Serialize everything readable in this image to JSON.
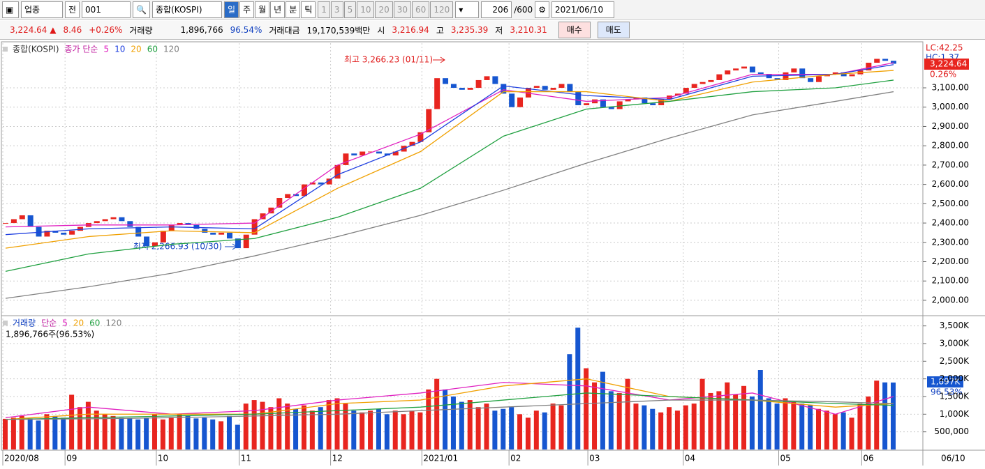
{
  "toolbar": {
    "market": "업종",
    "prev": "전",
    "code": "001",
    "name": "종합(KOSPI)",
    "periods": [
      "일",
      "주",
      "월",
      "년",
      "분",
      "틱"
    ],
    "intervals": [
      "1",
      "3",
      "5",
      "10",
      "20",
      "30",
      "60",
      "120"
    ],
    "count": "206",
    "max": "/600",
    "date": "2021/06/10"
  },
  "info": {
    "price": "3,224.64 ▲",
    "change": "8.46",
    "change_pct": "+0.26%",
    "volume_label": "거래량",
    "volume": "1,896,766",
    "volume_pct": "96.54%",
    "amount_label": "거래대금",
    "amount": "19,170,539백만",
    "open_label": "시",
    "open": "3,216.94",
    "high_label": "고",
    "high": "3,235.39",
    "low_label": "저",
    "low": "3,210.31",
    "buy": "매수",
    "sell": "매도"
  },
  "chart_data": [
    {
      "type": "candlestick",
      "title": "종합(KOSPI)",
      "ma_label": "종가 단순",
      "up_color": "#e8251f",
      "down_color": "#1656d0",
      "close": [
        2400,
        2420,
        2440,
        2380,
        2330,
        2360,
        2350,
        2340,
        2360,
        2380,
        2400,
        2410,
        2420,
        2430,
        2410,
        2380,
        2330,
        2280,
        2300,
        2360,
        2390,
        2400,
        2390,
        2370,
        2350,
        2340,
        2350,
        2320,
        2270,
        2340,
        2420,
        2450,
        2480,
        2530,
        2550,
        2540,
        2600,
        2610,
        2600,
        2630,
        2700,
        2760,
        2750,
        2770,
        2770,
        2760,
        2750,
        2770,
        2800,
        2820,
        2870,
        2990,
        3150,
        3120,
        3100,
        3090,
        3100,
        3140,
        3160,
        3120,
        3070,
        3000,
        3050,
        3100,
        3110,
        3090,
        3100,
        3120,
        3080,
        3010,
        3020,
        3040,
        3000,
        2990,
        3030,
        3040,
        3050,
        3020,
        3010,
        3040,
        3060,
        3070,
        3100,
        3120,
        3130,
        3140,
        3170,
        3190,
        3200,
        3210,
        3180,
        3170,
        3150,
        3140,
        3180,
        3200,
        3150,
        3130,
        3160,
        3170,
        3180,
        3160,
        3170,
        3190,
        3230,
        3250,
        3240,
        3224.64
      ],
      "series": [
        {
          "name": "5",
          "color": "#e020c0",
          "x": [
            0,
            10,
            20,
            30,
            40,
            50,
            60,
            70,
            80,
            90,
            100,
            107
          ],
          "values": [
            2380,
            2390,
            2390,
            2400,
            2700,
            2860,
            3090,
            3030,
            3050,
            3170,
            3170,
            3230
          ]
        },
        {
          "name": "10",
          "color": "#2040e0",
          "x": [
            0,
            10,
            20,
            30,
            40,
            50,
            60,
            70,
            80,
            90,
            100,
            107
          ],
          "values": [
            2340,
            2370,
            2380,
            2370,
            2650,
            2820,
            3110,
            3060,
            3040,
            3160,
            3170,
            3220
          ]
        },
        {
          "name": "20",
          "color": "#f0a000",
          "x": [
            0,
            10,
            20,
            30,
            40,
            50,
            60,
            70,
            80,
            90,
            100,
            107
          ],
          "values": [
            2270,
            2330,
            2360,
            2350,
            2580,
            2770,
            3080,
            3080,
            3030,
            3130,
            3170,
            3190
          ]
        },
        {
          "name": "60",
          "color": "#20a040",
          "x": [
            0,
            10,
            20,
            30,
            40,
            50,
            60,
            70,
            80,
            90,
            100,
            107
          ],
          "values": [
            2150,
            2240,
            2290,
            2320,
            2430,
            2580,
            2850,
            2990,
            3030,
            3080,
            3100,
            3140
          ]
        },
        {
          "name": "120",
          "color": "#808080",
          "x": [
            0,
            10,
            20,
            30,
            40,
            50,
            60,
            70,
            80,
            90,
            100,
            107
          ],
          "values": [
            2010,
            2070,
            2140,
            2230,
            2330,
            2440,
            2570,
            2710,
            2840,
            2960,
            3030,
            3080
          ]
        }
      ],
      "xlim": [
        0,
        107
      ],
      "xticks": [
        {
          "value": 0,
          "label": "2020/08"
        },
        {
          "value": 7.5,
          "label": "09"
        },
        {
          "value": 18.5,
          "label": "10"
        },
        {
          "value": 28.5,
          "label": "11"
        },
        {
          "value": 39.5,
          "label": "12"
        },
        {
          "value": 50.5,
          "label": "2021/01"
        },
        {
          "value": 61,
          "label": "02"
        },
        {
          "value": 70.5,
          "label": "03"
        },
        {
          "value": 82,
          "label": "04"
        },
        {
          "value": 93.5,
          "label": "05"
        },
        {
          "value": 103.5,
          "label": "06"
        }
      ],
      "ylim": [
        1924,
        3331
      ],
      "yticks": [
        {
          "value": 2000,
          "label": "2,000.00"
        },
        {
          "value": 2100,
          "label": "2,100.00"
        },
        {
          "value": 2200,
          "label": "2,200.00"
        },
        {
          "value": 2300,
          "label": "2,300.00"
        },
        {
          "value": 2400,
          "label": "2,400.00"
        },
        {
          "value": 2500,
          "label": "2,500.00"
        },
        {
          "value": 2600,
          "label": "2,600.00"
        },
        {
          "value": 2700,
          "label": "2,700.00"
        },
        {
          "value": 2800,
          "label": "2,800.00"
        },
        {
          "value": 2900,
          "label": "2,900.00"
        },
        {
          "value": 3000,
          "label": "3,000.00"
        },
        {
          "value": 3100,
          "label": "3,100.00"
        }
      ],
      "annotations": [
        "최고 3,266.23 (01/11)",
        "최저 2,266.93 (10/30)"
      ],
      "axis_notes": [
        "LC:42.25",
        "HC:1.37",
        "3,224.64",
        "0.26%"
      ],
      "end_label": "06/10"
    },
    {
      "type": "bar",
      "title": "거래량",
      "ma_label": "단순",
      "summary": "1,896,766주(96.53%)",
      "values": [
        870000,
        900000,
        950000,
        880000,
        820000,
        1000000,
        950000,
        900000,
        1550000,
        1200000,
        1350000,
        1100000,
        1000000,
        950000,
        900000,
        880000,
        850000,
        900000,
        1000000,
        850000,
        920000,
        1000000,
        950000,
        880000,
        900000,
        850000,
        800000,
        950000,
        700000,
        1300000,
        1400000,
        1350000,
        1200000,
        1450000,
        1300000,
        1150000,
        1250000,
        1100000,
        1200000,
        1400000,
        1450000,
        1300000,
        1100000,
        1050000,
        1100000,
        1150000,
        1000000,
        1100000,
        1000000,
        1100000,
        1050000,
        1700000,
        2000000,
        1700000,
        1500000,
        1350000,
        1400000,
        1200000,
        1300000,
        1100000,
        1150000,
        1200000,
        1000000,
        900000,
        1100000,
        1050000,
        1300000,
        1250000,
        2700000,
        3450000,
        2300000,
        1900000,
        2200000,
        1650000,
        1600000,
        2000000,
        1300000,
        1250000,
        1150000,
        1050000,
        1200000,
        1100000,
        1250000,
        1300000,
        2000000,
        1600000,
        1650000,
        1900000,
        1550000,
        1800000,
        1500000,
        2250000,
        1450000,
        1300000,
        1450000,
        1350000,
        1300000,
        1250000,
        1150000,
        1100000,
        1000000,
        1050000,
        900000,
        1300000,
        1500000,
        1950000,
        1900000,
        1896766
      ],
      "series": [
        {
          "name": "5",
          "color": "#e020c0",
          "x": [
            0,
            10,
            20,
            30,
            40,
            50,
            60,
            70,
            80,
            90,
            100,
            107
          ],
          "values": [
            900000,
            1200000,
            1000000,
            1100000,
            1400000,
            1600000,
            1900000,
            1800000,
            1400000,
            1600000,
            1000000,
            1500000
          ]
        },
        {
          "name": "20",
          "color": "#f0a000",
          "x": [
            0,
            10,
            20,
            30,
            40,
            50,
            60,
            70,
            80,
            90,
            100,
            107
          ],
          "values": [
            850000,
            1000000,
            1000000,
            1000000,
            1300000,
            1400000,
            1800000,
            2000000,
            1500000,
            1400000,
            1200000,
            1300000
          ]
        },
        {
          "name": "60",
          "color": "#20a040",
          "x": [
            0,
            10,
            20,
            30,
            40,
            50,
            60,
            70,
            80,
            90,
            100,
            107
          ],
          "values": [
            850000,
            900000,
            950000,
            1000000,
            1100000,
            1200000,
            1400000,
            1600000,
            1500000,
            1400000,
            1300000,
            1250000
          ]
        },
        {
          "name": "120",
          "color": "#808080",
          "x": [
            0,
            10,
            20,
            30,
            40,
            50,
            60,
            70,
            80,
            90,
            100,
            107
          ],
          "values": [
            850000,
            870000,
            900000,
            950000,
            1000000,
            1100000,
            1200000,
            1300000,
            1400000,
            1400000,
            1350000,
            1300000
          ]
        }
      ],
      "ylim": [
        0,
        3750000
      ],
      "yticks": [
        {
          "value": 500000,
          "label": "500,000"
        },
        {
          "value": 1000000,
          "label": "1,000K"
        },
        {
          "value": 1500000,
          "label": "1,500K"
        },
        {
          "value": 2000000,
          "label": "2,000K"
        },
        {
          "value": 2500000,
          "label": "2,500K"
        },
        {
          "value": 3000000,
          "label": "3,000K"
        },
        {
          "value": 3500000,
          "label": "3,500K"
        }
      ],
      "axis_notes": [
        "1,897K",
        "96.53%"
      ]
    }
  ]
}
